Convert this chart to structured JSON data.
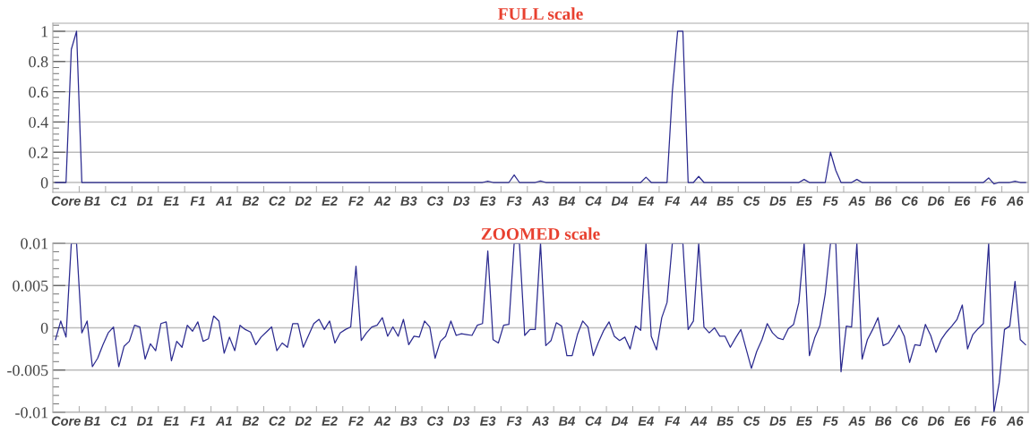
{
  "chart_data": [
    {
      "type": "line",
      "title": "FULL scale",
      "ylim": [
        -0.065,
        1.053
      ],
      "yticks": [
        0,
        0.2,
        0.4,
        0.6,
        0.8,
        1
      ],
      "grid": "y",
      "categories": [
        null,
        null,
        "Core",
        null,
        null,
        null,
        null,
        "B1",
        null,
        null,
        null,
        null,
        "C1",
        null,
        null,
        null,
        null,
        "D1",
        null,
        null,
        null,
        null,
        "E1",
        null,
        null,
        null,
        null,
        "F1",
        null,
        null,
        null,
        null,
        "A1",
        null,
        null,
        null,
        null,
        "B2",
        null,
        null,
        null,
        null,
        "C2",
        null,
        null,
        null,
        null,
        "D2",
        null,
        null,
        null,
        null,
        "E2",
        null,
        null,
        null,
        null,
        "F2",
        null,
        null,
        null,
        null,
        "A2",
        null,
        null,
        null,
        null,
        "B3",
        null,
        null,
        null,
        null,
        "C3",
        null,
        null,
        null,
        null,
        "D3",
        null,
        null,
        null,
        null,
        "E3",
        null,
        null,
        null,
        null,
        "F3",
        null,
        null,
        null,
        null,
        "A3",
        null,
        null,
        null,
        null,
        "B4",
        null,
        null,
        null,
        null,
        "C4",
        null,
        null,
        null,
        null,
        "D4",
        null,
        null,
        null,
        null,
        "E4",
        null,
        null,
        null,
        null,
        "F4",
        null,
        null,
        null,
        null,
        "A4",
        null,
        null,
        null,
        null,
        "B5",
        null,
        null,
        null,
        null,
        "C5",
        null,
        null,
        null,
        null,
        "D5",
        null,
        null,
        null,
        null,
        "E5",
        null,
        null,
        null,
        null,
        "F5",
        null,
        null,
        null,
        null,
        "A5",
        null,
        null,
        null,
        null,
        "B6",
        null,
        null,
        null,
        null,
        "C6",
        null,
        null,
        null,
        null,
        "D6",
        null,
        null,
        null,
        null,
        "E6",
        null,
        null,
        null,
        null,
        "F6",
        null,
        null,
        null,
        null,
        "A6",
        null,
        null
      ],
      "series": [
        {
          "color": "#2b2a8f",
          "values": [
            0,
            0,
            0,
            0.88,
            1,
            0,
            0,
            0,
            0,
            0,
            0,
            0,
            0,
            0,
            0,
            0,
            0,
            0,
            0,
            0,
            0,
            0,
            0,
            0,
            0,
            0,
            0,
            0,
            0,
            0,
            0,
            0,
            0,
            0,
            0,
            0,
            0,
            0,
            0,
            0,
            0,
            0,
            0,
            0,
            0,
            0,
            0,
            0,
            0,
            0,
            0,
            0,
            0,
            0,
            0,
            0,
            0,
            0,
            0,
            0,
            0,
            0,
            0,
            0,
            0,
            0,
            0,
            0,
            0,
            0,
            0,
            0,
            0,
            0,
            0,
            0,
            0,
            0,
            0,
            0,
            0,
            0,
            0.008,
            0,
            0,
            0,
            0,
            0.05,
            0,
            0,
            0,
            0,
            0.01,
            0,
            0,
            0,
            0,
            0,
            0,
            0,
            0,
            0,
            0,
            0,
            0,
            0,
            0,
            0,
            0,
            0,
            0,
            0,
            0.035,
            0,
            0,
            0,
            0,
            0.6,
            1,
            1,
            0,
            0,
            0.04,
            0,
            0,
            0,
            0,
            0,
            0,
            0,
            0,
            0,
            0,
            0,
            0,
            0,
            0,
            0,
            0,
            0,
            0,
            0,
            0.02,
            0,
            0,
            0,
            0,
            0.2,
            0.08,
            0,
            0,
            0,
            0.02,
            0,
            0,
            0,
            0,
            0,
            0,
            0,
            0,
            0,
            0,
            0,
            0,
            0,
            0,
            0,
            0,
            0,
            0,
            0,
            0,
            0,
            0,
            0,
            0,
            0.03,
            -0.01,
            0,
            0,
            0,
            0.008,
            0,
            0
          ]
        }
      ]
    },
    {
      "type": "line",
      "title": "ZOOMED scale",
      "ylim": [
        -0.01,
        0.01
      ],
      "yticks": [
        {
          "value": -0.01,
          "label": "-0.01"
        },
        {
          "value": -0.005,
          "label": "-0.005"
        },
        0,
        0.005,
        0.01
      ],
      "grid": "y",
      "categories": [
        null,
        null,
        "Core",
        null,
        null,
        null,
        null,
        "B1",
        null,
        null,
        null,
        null,
        "C1",
        null,
        null,
        null,
        null,
        "D1",
        null,
        null,
        null,
        null,
        "E1",
        null,
        null,
        null,
        null,
        "F1",
        null,
        null,
        null,
        null,
        "A1",
        null,
        null,
        null,
        null,
        "B2",
        null,
        null,
        null,
        null,
        "C2",
        null,
        null,
        null,
        null,
        "D2",
        null,
        null,
        null,
        null,
        "E2",
        null,
        null,
        null,
        null,
        "F2",
        null,
        null,
        null,
        null,
        "A2",
        null,
        null,
        null,
        null,
        "B3",
        null,
        null,
        null,
        null,
        "C3",
        null,
        null,
        null,
        null,
        "D3",
        null,
        null,
        null,
        null,
        "E3",
        null,
        null,
        null,
        null,
        "F3",
        null,
        null,
        null,
        null,
        "A3",
        null,
        null,
        null,
        null,
        "B4",
        null,
        null,
        null,
        null,
        "C4",
        null,
        null,
        null,
        null,
        "D4",
        null,
        null,
        null,
        null,
        "E4",
        null,
        null,
        null,
        null,
        "F4",
        null,
        null,
        null,
        null,
        "A4",
        null,
        null,
        null,
        null,
        "B5",
        null,
        null,
        null,
        null,
        "C5",
        null,
        null,
        null,
        null,
        "D5",
        null,
        null,
        null,
        null,
        "E5",
        null,
        null,
        null,
        null,
        "F5",
        null,
        null,
        null,
        null,
        "A5",
        null,
        null,
        null,
        null,
        "B6",
        null,
        null,
        null,
        null,
        "C6",
        null,
        null,
        null,
        null,
        "D6",
        null,
        null,
        null,
        null,
        "E6",
        null,
        null,
        null,
        null,
        "F6",
        null,
        null,
        null,
        null,
        "A6",
        null,
        null
      ],
      "series": [
        {
          "color": "#2b2a8f",
          "values": [
            -0.0014,
            0.0008,
            -0.0011,
            0.01,
            0.01,
            -0.0006,
            0.0008,
            -0.0046,
            -0.0036,
            -0.002,
            -0.0006,
            0.0001,
            -0.0046,
            -0.0022,
            -0.0016,
            0.0003,
            0.0001,
            -0.0037,
            -0.0019,
            -0.0027,
            0.0005,
            0.0007,
            -0.0039,
            -0.0016,
            -0.0023,
            0.0003,
            -0.0004,
            0.0007,
            -0.0016,
            -0.0013,
            0.0014,
            0.0008,
            -0.003,
            -0.0011,
            -0.0027,
            0.0003,
            -0.0002,
            -0.0005,
            -0.002,
            -0.0011,
            -0.0005,
            0.0001,
            -0.0027,
            -0.0018,
            -0.0023,
            0.0005,
            0.0005,
            -0.0023,
            -0.0009,
            0.0005,
            0.001,
            -0.0002,
            0.0008,
            -0.0018,
            -0.0006,
            -0.0002,
            0.0001,
            0.0073,
            -0.0015,
            -0.0006,
            0.0001,
            0.0003,
            0.0012,
            -0.001,
            0.0001,
            -0.001,
            0.001,
            -0.002,
            -0.001,
            -0.0011,
            0.0008,
            0.0001,
            -0.0036,
            -0.0016,
            -0.001,
            0.0008,
            -0.0009,
            -0.0007,
            -0.0008,
            -0.0009,
            0.0003,
            0.0005,
            0.0091,
            -0.0014,
            -0.0018,
            0.0003,
            0.0004,
            0.01,
            0.01,
            -0.0009,
            -0.0002,
            -0.0002,
            0.01,
            -0.0021,
            -0.0015,
            0.0006,
            0.0002,
            -0.0033,
            -0.0033,
            -0.0008,
            0.0008,
            0.0001,
            -0.0033,
            -0.0017,
            -0.0003,
            0.0007,
            -0.001,
            -0.0015,
            -0.0011,
            -0.0025,
            0.0002,
            -0.0003,
            0.01,
            -0.001,
            -0.0026,
            0.0012,
            0.003,
            0.01,
            0.01,
            0.01,
            -0.0002,
            0.0008,
            0.01,
            0.0001,
            -0.0006,
            0,
            -0.001,
            -0.001,
            -0.0023,
            -0.0012,
            -0.0002,
            -0.0025,
            -0.0048,
            -0.0028,
            -0.0014,
            0.0005,
            -0.0006,
            -0.0012,
            -0.0014,
            -0.0001,
            0.0004,
            0.003,
            0.01,
            -0.0033,
            -0.0012,
            0.0003,
            0.004,
            0.01,
            0.01,
            -0.0052,
            0.0002,
            0.0001,
            0.01,
            -0.0037,
            -0.0014,
            -0.0002,
            0.0012,
            -0.0021,
            -0.0018,
            -0.0008,
            0.0003,
            -0.001,
            -0.0041,
            -0.002,
            -0.0021,
            0.0004,
            -0.0009,
            -0.0029,
            -0.0014,
            -0.0005,
            0.0002,
            0.001,
            0.0027,
            -0.0025,
            -0.0008,
            -0.0001,
            0.0005,
            0.01,
            -0.01,
            -0.0065,
            -0.0002,
            0.0002,
            0.0055,
            -0.0014,
            -0.002
          ]
        }
      ]
    }
  ]
}
